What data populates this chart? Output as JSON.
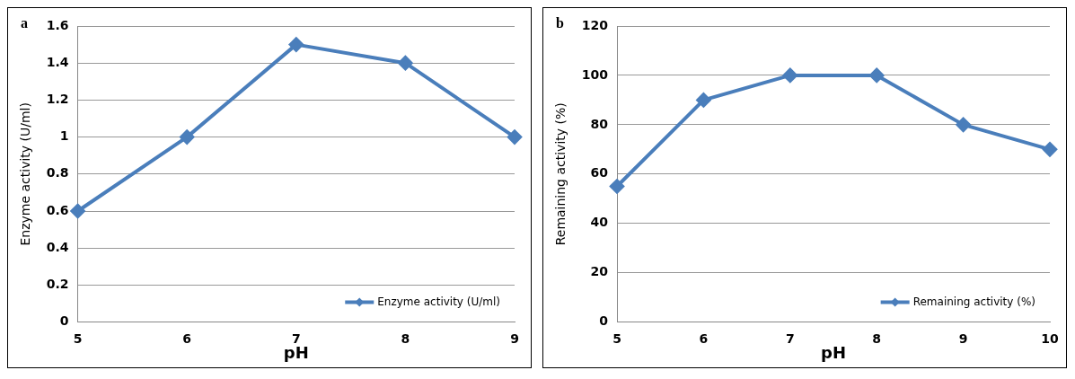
{
  "chart_data": [
    {
      "type": "line",
      "categories": [
        "5",
        "6",
        "7",
        "8",
        "9"
      ],
      "series": [
        {
          "name": "Enzyme activity (U/ml)",
          "color": "#4a7ebb",
          "values": [
            0.6,
            1,
            1.5,
            1.4,
            1
          ]
        }
      ],
      "xlabel": "pH",
      "ylabel": "Enzyme activity (U/ml)",
      "ylim": [
        0,
        1.6
      ],
      "yticks": [
        0,
        0.2,
        0.4,
        0.6,
        0.8,
        1,
        1.2,
        1.4,
        1.6
      ],
      "grid": "y",
      "legend": "bottom right",
      "marker": "diamond",
      "line_style": "solid",
      "annotations": [
        "a"
      ]
    },
    {
      "type": "line",
      "categories": [
        "5",
        "6",
        "7",
        "8",
        "9",
        "10"
      ],
      "series": [
        {
          "name": "Remaining activity (%)",
          "color": "#4a7ebb",
          "values": [
            55,
            90,
            100,
            100,
            80,
            70
          ]
        }
      ],
      "xlabel": "pH",
      "ylabel": "Remaining activity (%)",
      "ylim": [
        0,
        120
      ],
      "yticks": [
        0,
        20,
        40,
        60,
        80,
        100,
        120
      ],
      "grid": "y",
      "legend": "bottom right",
      "marker": "diamond",
      "line_style": "solid",
      "annotations": [
        "b"
      ]
    }
  ]
}
